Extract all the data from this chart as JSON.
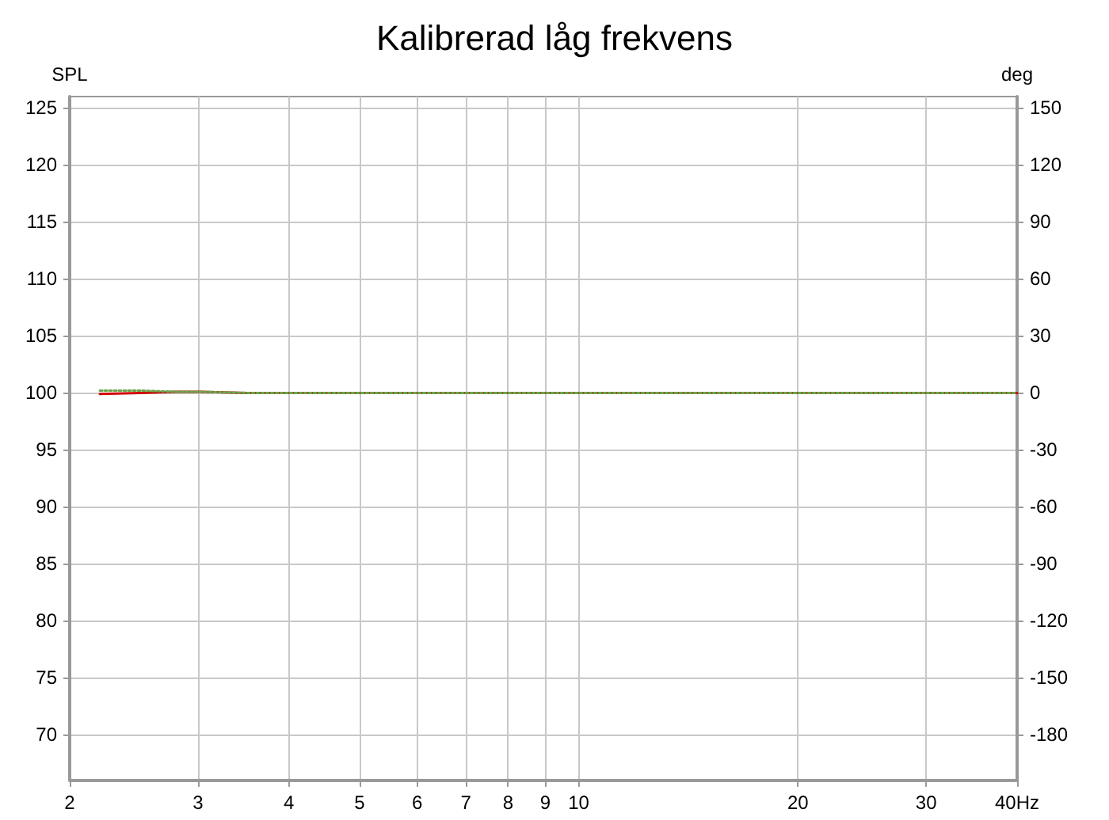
{
  "chart_data": {
    "type": "line",
    "title": "Kalibrerad låg frekvens",
    "ylabel": "SPL",
    "y2label": "deg",
    "x": [
      2.2,
      2.5,
      2.8,
      3,
      3.5,
      4,
      5,
      6,
      8,
      10,
      15,
      20,
      30,
      40
    ],
    "series": [
      {
        "color": "#d00000",
        "line_style": "solid",
        "values": [
          99.9,
          100,
          100.1,
          100.1,
          100,
          100,
          100,
          100,
          100,
          100,
          100,
          100,
          100,
          100
        ]
      },
      {
        "color": "#6aa84f",
        "line_style": "dotted",
        "values": [
          100.2,
          100.2,
          100.1,
          100.1,
          100,
          100,
          100,
          100,
          100,
          100,
          100,
          100,
          100,
          100
        ]
      }
    ],
    "log": "x",
    "xlim": [
      2,
      40
    ],
    "xticks": [
      2,
      3,
      4,
      5,
      6,
      7,
      8,
      9,
      10,
      20,
      30,
      {
        "value": 40,
        "label": "40Hz"
      }
    ],
    "ylim": [
      66,
      126
    ],
    "yticks": [
      70,
      75,
      80,
      85,
      90,
      95,
      100,
      105,
      110,
      115,
      120,
      125
    ],
    "y2lim": [
      -204,
      156
    ],
    "y2ticks": [
      -180,
      -150,
      -120,
      -90,
      -60,
      -30,
      0,
      30,
      60,
      90,
      120,
      150
    ],
    "grid": true,
    "marker": "none"
  }
}
